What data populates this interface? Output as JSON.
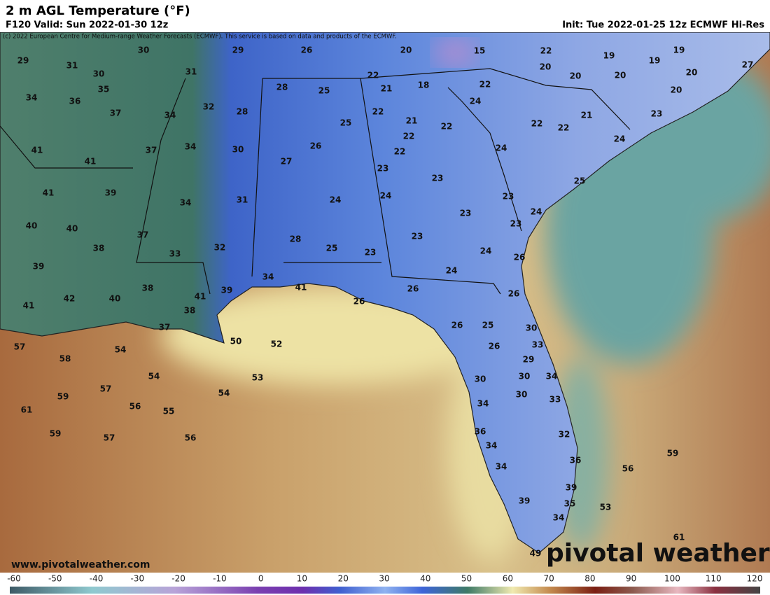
{
  "header": {
    "title": "2 m AGL Temperature (°F)",
    "valid": "F120 Valid: Sun 2022-01-30 12z",
    "init": "Init: Tue 2022-01-25 12z ECMWF Hi-Res",
    "copyright": "(c) 2022 European Centre for Medium-range Weather Forecasts (ECMWF). This service is based on data and products of the ECMWF."
  },
  "map": {
    "labels": [
      29,
      30,
      29,
      26,
      20,
      15,
      22,
      19,
      19,
      19,
      27,
      20,
      31,
      30,
      31,
      22,
      20,
      20,
      20,
      20,
      35,
      28,
      25,
      21,
      18,
      22,
      34,
      36,
      32,
      28,
      24,
      37,
      34,
      22,
      21,
      22,
      22,
      22,
      21,
      23,
      25,
      22,
      24,
      41,
      37,
      34,
      30,
      26,
      22,
      24,
      41,
      27,
      23,
      23,
      41,
      39,
      34,
      31,
      24,
      24,
      25,
      23,
      40,
      40,
      37,
      23,
      24,
      23,
      38,
      33,
      32,
      28,
      25,
      23,
      23,
      24,
      26,
      39,
      24,
      34,
      38,
      39,
      41,
      26,
      26,
      42,
      40,
      41,
      41,
      26,
      38,
      37,
      26,
      25,
      30,
      57,
      50,
      52,
      33,
      26,
      54,
      58,
      29,
      54,
      53,
      30,
      30,
      34,
      57,
      59,
      54,
      30,
      56,
      55,
      61,
      34,
      33,
      59,
      57,
      56,
      36,
      32,
      34,
      59,
      36,
      56,
      34,
      39,
      39,
      35,
      53,
      34,
      61,
      49
    ]
  },
  "footer": {
    "website": "www.pivotalweather.com",
    "logo": "pivotal weather"
  },
  "colorbar": {
    "ticks": [
      -60,
      -50,
      -40,
      -30,
      -20,
      -10,
      0,
      10,
      20,
      30,
      40,
      50,
      60,
      70,
      80,
      90,
      100,
      110,
      120
    ]
  }
}
